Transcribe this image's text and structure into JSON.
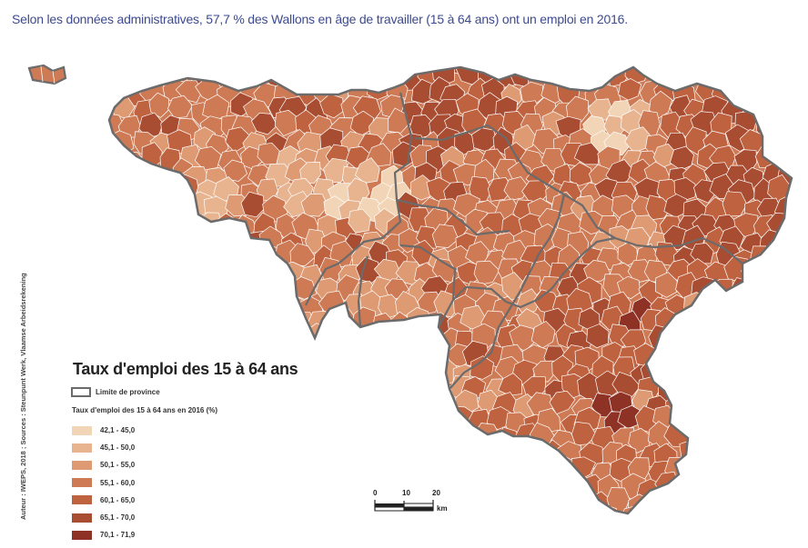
{
  "caption": "Selon les données administratives, 57,7 % des Wallons en âge de travailler (15 à 64 ans) ont un emploi en 2016.",
  "side_credit": "Auteur : IWEPS, 2018 ; Sources : Steunpunt Werk, Vlaamse Arbeidsrekening",
  "legend": {
    "title": "Taux d'emploi des 15 à 64 ans",
    "province_label": "Limite de province",
    "class_title": "Taux d'emploi des 15 à 64 ans en 2016 (%)",
    "classes": [
      {
        "label": "42,1 - 45,0",
        "color": "#f2d4b6"
      },
      {
        "label": "45,1 - 50,0",
        "color": "#e7b48f"
      },
      {
        "label": "50,1 - 55,0",
        "color": "#dd9a73"
      },
      {
        "label": "55,1 - 60,0",
        "color": "#cd7a55"
      },
      {
        "label": "60,1 - 65,0",
        "color": "#be6240"
      },
      {
        "label": "65,1 - 70,0",
        "color": "#a84c32"
      },
      {
        "label": "70,1 - 71,9",
        "color": "#8e3226"
      }
    ]
  },
  "scale": {
    "ticks": [
      "0",
      "10",
      "20"
    ],
    "unit": "km"
  },
  "colors": {
    "province_border": "#6b6b6b",
    "commune_border": "#ffffff"
  }
}
